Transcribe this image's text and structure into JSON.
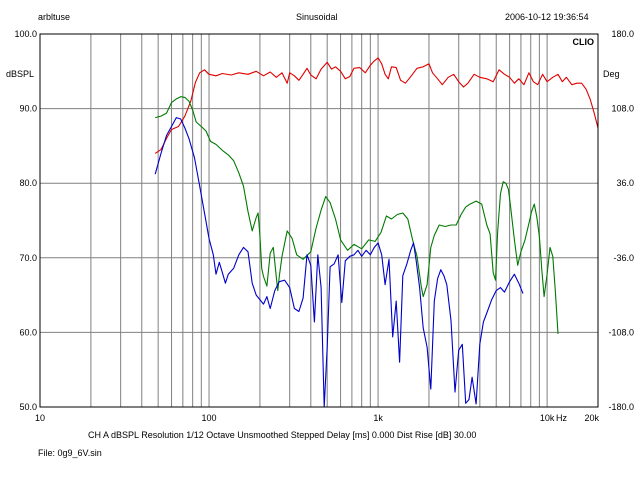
{
  "header": {
    "file_label": "arbltuse",
    "mode": "Sinusoidal",
    "timestamp": "2006-10-12 19:36:54",
    "brand": "CLIO"
  },
  "footer": {
    "settings": "CH A   dBSPL   Resolution 1/12 Octave   Unsmoothed   Stepped     Delay [ms] 0.000     Dist Rise [dB] 30.00",
    "file": "File: 0g9_6V.sin"
  },
  "colors": {
    "grid": "#808080",
    "frame": "#000000",
    "red_series": "#e00000",
    "green_series": "#007a00",
    "blue_series": "#0000cc"
  },
  "chart_data": {
    "type": "line",
    "x_scale": "log",
    "xlim": [
      10,
      20000
    ],
    "ylim": [
      50,
      100
    ],
    "y2lim": [
      -180,
      180
    ],
    "ylabel": "dBSPL",
    "y2label": "Deg",
    "xlabel": "Hz",
    "x_ticks": [
      {
        "value": 10,
        "label": "10"
      },
      {
        "value": 100,
        "label": "100"
      },
      {
        "value": 1000,
        "label": "1k"
      },
      {
        "value": 10000,
        "label": "10k"
      },
      {
        "value": 20000,
        "label": "20k"
      }
    ],
    "y_ticks": [
      "100.0",
      "90.0",
      "80.0",
      "70.0",
      "60.0",
      "50.0"
    ],
    "y2_ticks": [
      "180.0",
      "108.0",
      "36.0",
      "-36.0",
      "-108.0",
      "-180.0"
    ],
    "series": [
      {
        "axis": "left",
        "color_key": "red_series",
        "points": [
          [
            48,
            84.0
          ],
          [
            52,
            84.5
          ],
          [
            56,
            86.0
          ],
          [
            60,
            87.2
          ],
          [
            66,
            87.6
          ],
          [
            72,
            89.0
          ],
          [
            78,
            91.0
          ],
          [
            83,
            93.5
          ],
          [
            88,
            94.8
          ],
          [
            94,
            95.2
          ],
          [
            100,
            94.6
          ],
          [
            110,
            94.4
          ],
          [
            120,
            94.7
          ],
          [
            135,
            94.5
          ],
          [
            150,
            94.8
          ],
          [
            170,
            94.6
          ],
          [
            190,
            95.0
          ],
          [
            210,
            94.4
          ],
          [
            230,
            94.9
          ],
          [
            250,
            94.2
          ],
          [
            270,
            94.8
          ],
          [
            290,
            93.4
          ],
          [
            300,
            94.8
          ],
          [
            320,
            94.4
          ],
          [
            340,
            93.8
          ],
          [
            360,
            94.6
          ],
          [
            380,
            95.4
          ],
          [
            400,
            94.5
          ],
          [
            430,
            94.0
          ],
          [
            460,
            95.3
          ],
          [
            500,
            96.2
          ],
          [
            530,
            95.3
          ],
          [
            560,
            95.6
          ],
          [
            600,
            95.0
          ],
          [
            640,
            94.0
          ],
          [
            680,
            94.3
          ],
          [
            720,
            95.4
          ],
          [
            780,
            95.5
          ],
          [
            840,
            94.8
          ],
          [
            900,
            95.8
          ],
          [
            950,
            96.4
          ],
          [
            1000,
            96.8
          ],
          [
            1050,
            96.0
          ],
          [
            1100,
            94.6
          ],
          [
            1150,
            94.0
          ],
          [
            1200,
            95.6
          ],
          [
            1280,
            95.5
          ],
          [
            1360,
            93.8
          ],
          [
            1450,
            93.4
          ],
          [
            1550,
            94.2
          ],
          [
            1700,
            95.4
          ],
          [
            1850,
            95.6
          ],
          [
            2000,
            96.0
          ],
          [
            2100,
            94.8
          ],
          [
            2250,
            94.0
          ],
          [
            2400,
            93.2
          ],
          [
            2600,
            94.2
          ],
          [
            2800,
            94.6
          ],
          [
            3000,
            93.6
          ],
          [
            3200,
            92.9
          ],
          [
            3400,
            93.4
          ],
          [
            3700,
            94.6
          ],
          [
            4000,
            94.2
          ],
          [
            4400,
            94.0
          ],
          [
            4800,
            93.6
          ],
          [
            5200,
            95.2
          ],
          [
            5600,
            94.6
          ],
          [
            6000,
            94.2
          ],
          [
            6400,
            93.4
          ],
          [
            6800,
            94.0
          ],
          [
            7300,
            93.2
          ],
          [
            7800,
            94.8
          ],
          [
            8300,
            93.6
          ],
          [
            8800,
            93.2
          ],
          [
            9400,
            94.6
          ],
          [
            10000,
            93.6
          ],
          [
            10800,
            94.2
          ],
          [
            11600,
            94.6
          ],
          [
            12300,
            93.6
          ],
          [
            13000,
            94.2
          ],
          [
            14000,
            93.2
          ],
          [
            15000,
            93.4
          ],
          [
            16000,
            93.4
          ],
          [
            17000,
            92.6
          ],
          [
            18000,
            91.2
          ],
          [
            19000,
            89.4
          ],
          [
            20000,
            87.4
          ]
        ]
      },
      {
        "axis": "left",
        "color_key": "green_series",
        "points": [
          [
            48,
            88.8
          ],
          [
            52,
            89.0
          ],
          [
            56,
            89.4
          ],
          [
            60,
            90.8
          ],
          [
            64,
            91.3
          ],
          [
            68,
            91.6
          ],
          [
            72,
            91.5
          ],
          [
            76,
            91.0
          ],
          [
            80,
            89.8
          ],
          [
            84,
            88.2
          ],
          [
            90,
            87.6
          ],
          [
            96,
            87.0
          ],
          [
            102,
            85.6
          ],
          [
            110,
            85.2
          ],
          [
            120,
            84.4
          ],
          [
            130,
            83.8
          ],
          [
            140,
            83.0
          ],
          [
            150,
            81.4
          ],
          [
            160,
            79.6
          ],
          [
            170,
            76.2
          ],
          [
            180,
            73.6
          ],
          [
            190,
            75.4
          ],
          [
            195,
            76.0
          ],
          [
            200,
            73.0
          ],
          [
            205,
            68.6
          ],
          [
            210,
            67.5
          ],
          [
            220,
            66.2
          ],
          [
            230,
            70.6
          ],
          [
            240,
            71.4
          ],
          [
            250,
            67.4
          ],
          [
            255,
            65.6
          ],
          [
            260,
            67.4
          ],
          [
            270,
            70.2
          ],
          [
            290,
            73.6
          ],
          [
            310,
            72.6
          ],
          [
            330,
            70.4
          ],
          [
            360,
            69.8
          ],
          [
            400,
            70.8
          ],
          [
            430,
            74.0
          ],
          [
            460,
            76.4
          ],
          [
            490,
            78.2
          ],
          [
            520,
            77.4
          ],
          [
            560,
            75.2
          ],
          [
            600,
            72.4
          ],
          [
            660,
            71.0
          ],
          [
            720,
            71.8
          ],
          [
            800,
            71.2
          ],
          [
            880,
            72.4
          ],
          [
            960,
            72.2
          ],
          [
            1040,
            73.4
          ],
          [
            1120,
            75.6
          ],
          [
            1200,
            75.2
          ],
          [
            1300,
            75.8
          ],
          [
            1400,
            76.0
          ],
          [
            1500,
            75.2
          ],
          [
            1600,
            72.4
          ],
          [
            1700,
            70.2
          ],
          [
            1800,
            66.2
          ],
          [
            1850,
            64.8
          ],
          [
            1950,
            66.4
          ],
          [
            2050,
            71.4
          ],
          [
            2150,
            73.0
          ],
          [
            2300,
            74.4
          ],
          [
            2500,
            74.2
          ],
          [
            2700,
            74.4
          ],
          [
            2900,
            74.4
          ],
          [
            3100,
            75.8
          ],
          [
            3300,
            76.8
          ],
          [
            3500,
            77.2
          ],
          [
            3800,
            77.6
          ],
          [
            4100,
            77.2
          ],
          [
            4400,
            74.4
          ],
          [
            4600,
            73.2
          ],
          [
            4800,
            68.0
          ],
          [
            4950,
            67.0
          ],
          [
            5100,
            73.6
          ],
          [
            5300,
            78.6
          ],
          [
            5500,
            80.2
          ],
          [
            5700,
            80.0
          ],
          [
            5900,
            79.2
          ],
          [
            6100,
            76.6
          ],
          [
            6400,
            72.4
          ],
          [
            6700,
            69.0
          ],
          [
            7000,
            70.8
          ],
          [
            7400,
            72.4
          ],
          [
            7800,
            74.6
          ],
          [
            8100,
            76.2
          ],
          [
            8400,
            77.2
          ],
          [
            8700,
            75.4
          ],
          [
            9000,
            72.8
          ],
          [
            9300,
            68.4
          ],
          [
            9600,
            64.8
          ],
          [
            10000,
            67.8
          ],
          [
            10400,
            71.4
          ],
          [
            10800,
            70.2
          ],
          [
            11200,
            65.4
          ],
          [
            11600,
            59.8
          ]
        ]
      },
      {
        "axis": "left",
        "color_key": "blue_series",
        "points": [
          [
            48,
            81.2
          ],
          [
            52,
            84.0
          ],
          [
            56,
            86.4
          ],
          [
            60,
            87.6
          ],
          [
            64,
            88.8
          ],
          [
            68,
            88.6
          ],
          [
            72,
            87.4
          ],
          [
            76,
            86.0
          ],
          [
            82,
            83.4
          ],
          [
            88,
            79.6
          ],
          [
            94,
            76.0
          ],
          [
            100,
            72.6
          ],
          [
            106,
            70.4
          ],
          [
            110,
            67.8
          ],
          [
            115,
            69.4
          ],
          [
            120,
            68.0
          ],
          [
            125,
            66.6
          ],
          [
            130,
            67.8
          ],
          [
            140,
            68.6
          ],
          [
            150,
            70.4
          ],
          [
            160,
            71.4
          ],
          [
            170,
            70.8
          ],
          [
            180,
            66.6
          ],
          [
            190,
            65.0
          ],
          [
            200,
            64.4
          ],
          [
            210,
            63.8
          ],
          [
            220,
            64.8
          ],
          [
            230,
            63.2
          ],
          [
            245,
            65.6
          ],
          [
            260,
            66.8
          ],
          [
            280,
            67.0
          ],
          [
            300,
            66.0
          ],
          [
            320,
            63.2
          ],
          [
            340,
            62.8
          ],
          [
            360,
            64.6
          ],
          [
            380,
            70.4
          ],
          [
            400,
            69.0
          ],
          [
            420,
            61.4
          ],
          [
            440,
            70.4
          ],
          [
            460,
            66.0
          ],
          [
            480,
            50.0
          ],
          [
            500,
            58.0
          ],
          [
            520,
            68.8
          ],
          [
            550,
            69.2
          ],
          [
            580,
            70.4
          ],
          [
            610,
            64.0
          ],
          [
            640,
            69.6
          ],
          [
            680,
            70.2
          ],
          [
            720,
            70.4
          ],
          [
            760,
            71.0
          ],
          [
            800,
            70.2
          ],
          [
            850,
            71.0
          ],
          [
            900,
            70.4
          ],
          [
            950,
            71.4
          ],
          [
            1000,
            72.0
          ],
          [
            1050,
            70.4
          ],
          [
            1100,
            66.4
          ],
          [
            1160,
            69.8
          ],
          [
            1220,
            59.4
          ],
          [
            1280,
            64.2
          ],
          [
            1340,
            56.0
          ],
          [
            1400,
            67.6
          ],
          [
            1480,
            69.2
          ],
          [
            1560,
            71.0
          ],
          [
            1620,
            72.0
          ],
          [
            1680,
            69.6
          ],
          [
            1760,
            66.0
          ],
          [
            1850,
            60.6
          ],
          [
            1950,
            58.0
          ],
          [
            2050,
            52.4
          ],
          [
            2150,
            64.2
          ],
          [
            2250,
            67.2
          ],
          [
            2350,
            68.4
          ],
          [
            2450,
            67.6
          ],
          [
            2550,
            66.4
          ],
          [
            2700,
            61.6
          ],
          [
            2850,
            52.0
          ],
          [
            3000,
            57.6
          ],
          [
            3150,
            58.4
          ],
          [
            3300,
            50.5
          ],
          [
            3450,
            51.0
          ],
          [
            3600,
            54.0
          ],
          [
            3800,
            50.4
          ],
          [
            4000,
            58.4
          ],
          [
            4200,
            61.4
          ],
          [
            4400,
            62.6
          ],
          [
            4700,
            64.4
          ],
          [
            5000,
            65.6
          ],
          [
            5300,
            66.0
          ],
          [
            5600,
            65.4
          ],
          [
            6000,
            66.8
          ],
          [
            6400,
            67.8
          ],
          [
            6800,
            66.6
          ],
          [
            7200,
            65.2
          ]
        ]
      }
    ]
  }
}
